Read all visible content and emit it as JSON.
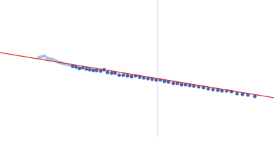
{
  "chart_data": {
    "type": "scatter",
    "xlim": [
      0,
      400
    ],
    "ylim": [
      0,
      200
    ],
    "series": [
      {
        "color": "#a9bfe2",
        "x": [
          57,
          61,
          65,
          69,
          73,
          77,
          81,
          85,
          89,
          93,
          97,
          101
        ],
        "values": [
          116,
          117,
          118,
          115,
          114,
          113,
          111,
          109,
          108,
          107,
          106,
          105
        ]
      },
      {
        "color": "#3e67b1",
        "x": [
          106,
          111,
          116,
          121,
          126,
          131,
          136,
          141,
          147,
          152,
          157,
          163,
          168,
          174,
          180,
          186,
          192,
          198,
          204,
          210,
          216,
          222,
          228,
          234,
          240,
          246,
          253,
          259,
          265,
          271,
          277,
          283,
          290,
          297,
          304,
          311,
          318,
          324,
          331,
          338,
          346,
          354,
          362,
          372
        ],
        "values": [
          103,
          102,
          100,
          101,
          99,
          98,
          97,
          97,
          96,
          98,
          94,
          93,
          93,
          90,
          90,
          89,
          88,
          89,
          87,
          86,
          85,
          84,
          83,
          83,
          81,
          80,
          78,
          78,
          76,
          76,
          75,
          74,
          73,
          72,
          70,
          69,
          68,
          67,
          67,
          66,
          63,
          62,
          61,
          59
        ]
      }
    ],
    "fit": {
      "color": "#d62a2a",
      "x": [
        0,
        400
      ],
      "values": [
        123,
        57
      ]
    },
    "vline": {
      "color": "#c9d3ea",
      "x": 230
    }
  }
}
